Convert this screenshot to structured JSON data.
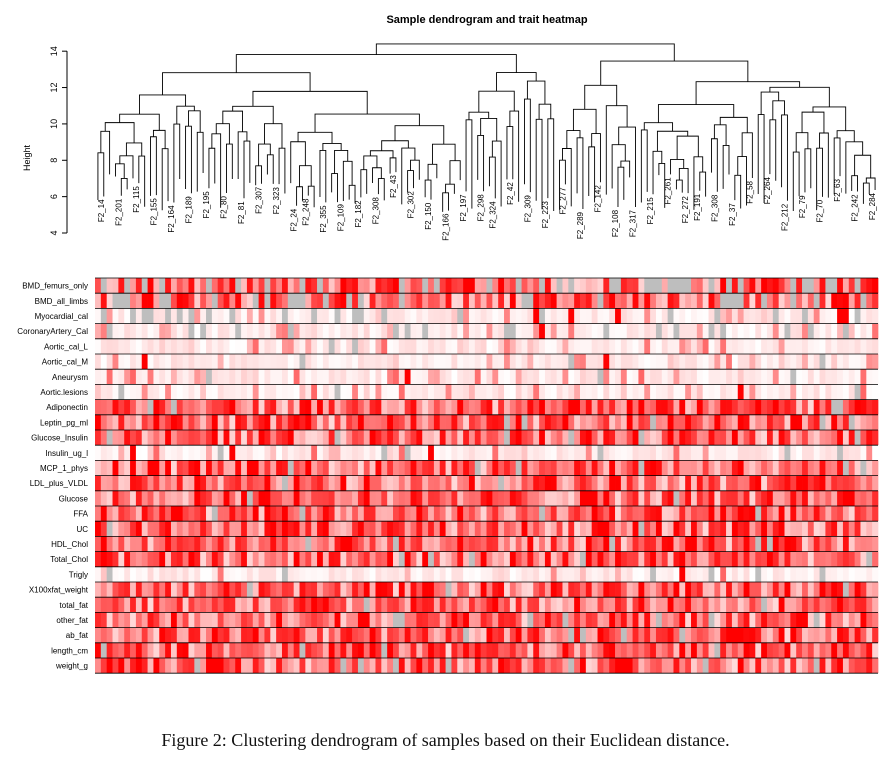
{
  "figure": {
    "title": "Sample dendrogram and trait heatmap",
    "caption": "Figure 2: Clustering dendrogram of samples based on their Euclidean distance."
  },
  "chart_data": {
    "type": "heatmap",
    "title": "Sample dendrogram and trait heatmap",
    "dendrogram": {
      "ylabel": "Height",
      "y_ticks": [
        4,
        6,
        8,
        10,
        12,
        14
      ],
      "ylim": [
        4,
        15
      ]
    },
    "sample_labels_visible": [
      "F2_14",
      "F2_201",
      "F2_115",
      "F2_155",
      "F2_164",
      "F2_189",
      "F2_195",
      "F2_80",
      "F2_81",
      "F2_307",
      "F2_323",
      "F2_24",
      "F2_248",
      "F2_355",
      "F2_109",
      "F2_182",
      "F2_308",
      "F2_43",
      "F2_302",
      "F2_150",
      "F2_166",
      "F2_197",
      "F2_298",
      "F2_324",
      "F2_42",
      "F2_309",
      "F2_223",
      "F2_277",
      "F2_289",
      "F2_142",
      "F2_108",
      "F2_317",
      "F2_215",
      "F2_261",
      "F2_272",
      "F2_191",
      "F2_308",
      "F2_37",
      "F2_58",
      "F2_264",
      "F2_212",
      "F2_79",
      "F2_70",
      "F2_63",
      "F2_242",
      "F2_284"
    ],
    "traits": [
      "BMD_femurs_only",
      "BMD_all_limbs",
      "Myocardial_cal",
      "CoronaryArtery_Cal",
      "Aortic_cal_L",
      "Aortic_cal_M",
      "Aneurysm",
      "Aortic.lesions",
      "Adiponectin",
      "Leptin_pg_ml",
      "Glucose_Insulin",
      "Insulin_ug_l",
      "MCP_1_phys",
      "LDL_plus_VLDL",
      "Glucose",
      "FFA",
      "UC",
      "HDL_Chol",
      "Total_Chol",
      "Trigly",
      "X100xfat_weight",
      "total_fat",
      "other_fat",
      "ab_fat",
      "length_cm",
      "weight_g"
    ],
    "n_samples": 134,
    "color_scale": {
      "low": "#ffffff",
      "high": "#ff0000",
      "missing": "#bebebe"
    }
  }
}
